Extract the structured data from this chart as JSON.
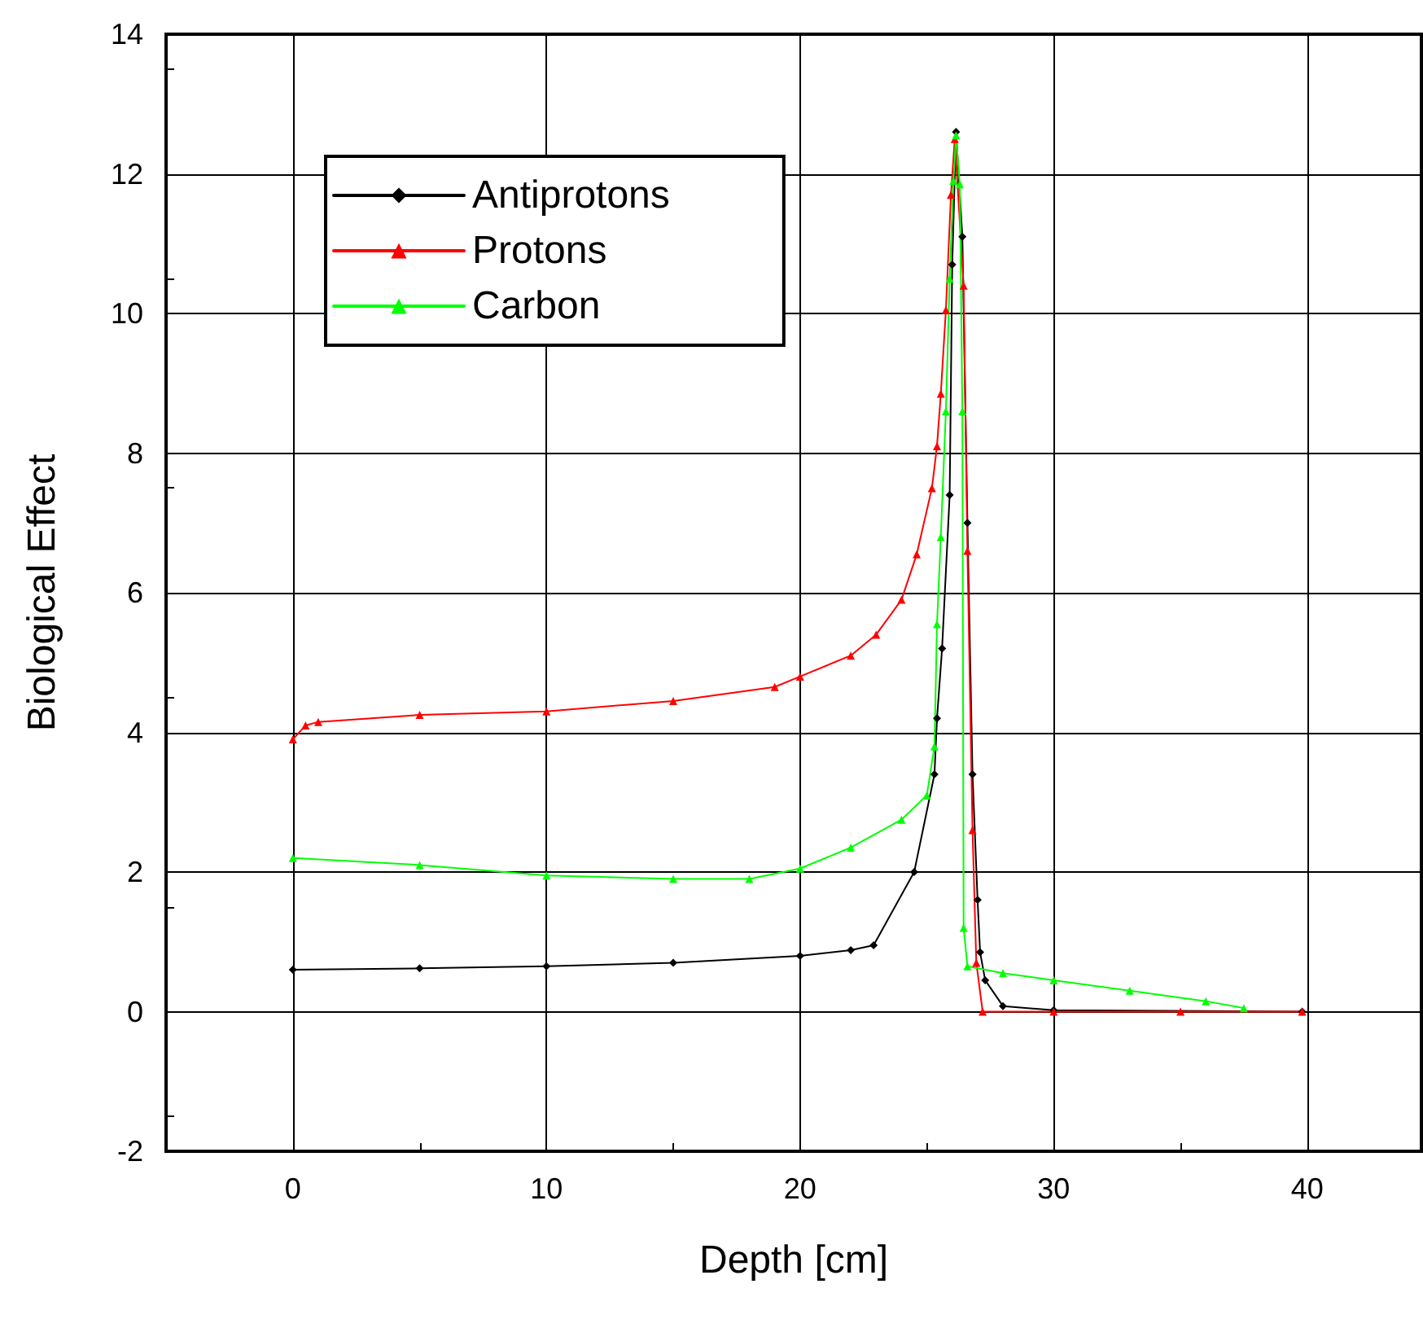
{
  "chart_data": {
    "type": "line",
    "xlabel": "Depth [cm]",
    "ylabel": "Biological Effect",
    "xlim": [
      -5,
      44.5
    ],
    "xticks": [
      0,
      10,
      20,
      30,
      40
    ],
    "ylim": [
      -2,
      14
    ],
    "yticks": [
      -2,
      0,
      2,
      4,
      6,
      8,
      10,
      12,
      14
    ],
    "grid": true,
    "legend": "top left",
    "line_style": "solid",
    "series": [
      {
        "name": "Antiprotons",
        "color": "#000000",
        "marker": "diamond",
        "x": [
          0,
          5,
          10,
          15,
          20,
          22,
          22.9,
          24.5,
          25.3,
          25.4,
          25.6,
          25.9,
          26.0,
          26.15,
          26.4,
          26.6,
          26.8,
          27.0,
          27.1,
          27.3,
          28,
          30,
          39.8
        ],
        "values": [
          0.6,
          0.62,
          0.65,
          0.7,
          0.8,
          0.88,
          0.95,
          2.0,
          3.4,
          4.2,
          5.2,
          7.4,
          10.7,
          12.6,
          11.1,
          7.0,
          3.4,
          1.6,
          0.85,
          0.45,
          0.08,
          0.02,
          0
        ]
      },
      {
        "name": "Protons",
        "color": "#ff0000",
        "marker": "triangle",
        "x": [
          0,
          0.5,
          1,
          5,
          10,
          15,
          19,
          20,
          22,
          23,
          24.0,
          24.6,
          25.2,
          25.4,
          25.55,
          25.75,
          25.95,
          26.1,
          26.45,
          26.6,
          26.8,
          26.95,
          27.2,
          30,
          35,
          39.8
        ],
        "values": [
          3.9,
          4.1,
          4.15,
          4.25,
          4.3,
          4.45,
          4.65,
          4.8,
          5.1,
          5.4,
          5.9,
          6.55,
          7.5,
          8.1,
          8.85,
          10.05,
          11.7,
          12.5,
          10.4,
          6.6,
          2.6,
          0.7,
          0,
          0,
          0,
          0
        ]
      },
      {
        "name": "Carbon",
        "color": "#00ff00",
        "marker": "triangle",
        "x": [
          0,
          5,
          10,
          15,
          18,
          20,
          22,
          24,
          25,
          25.3,
          25.4,
          25.55,
          25.75,
          25.9,
          26.05,
          26.15,
          26.3,
          26.4,
          26.45,
          26.6,
          28,
          30,
          33,
          36,
          37.5
        ],
        "values": [
          2.2,
          2.1,
          1.95,
          1.9,
          1.9,
          2.05,
          2.35,
          2.75,
          3.1,
          3.8,
          5.55,
          6.8,
          8.6,
          10.5,
          11.9,
          12.55,
          11.85,
          8.6,
          1.2,
          0.65,
          0.55,
          0.45,
          0.3,
          0.15,
          0.05
        ]
      }
    ]
  }
}
